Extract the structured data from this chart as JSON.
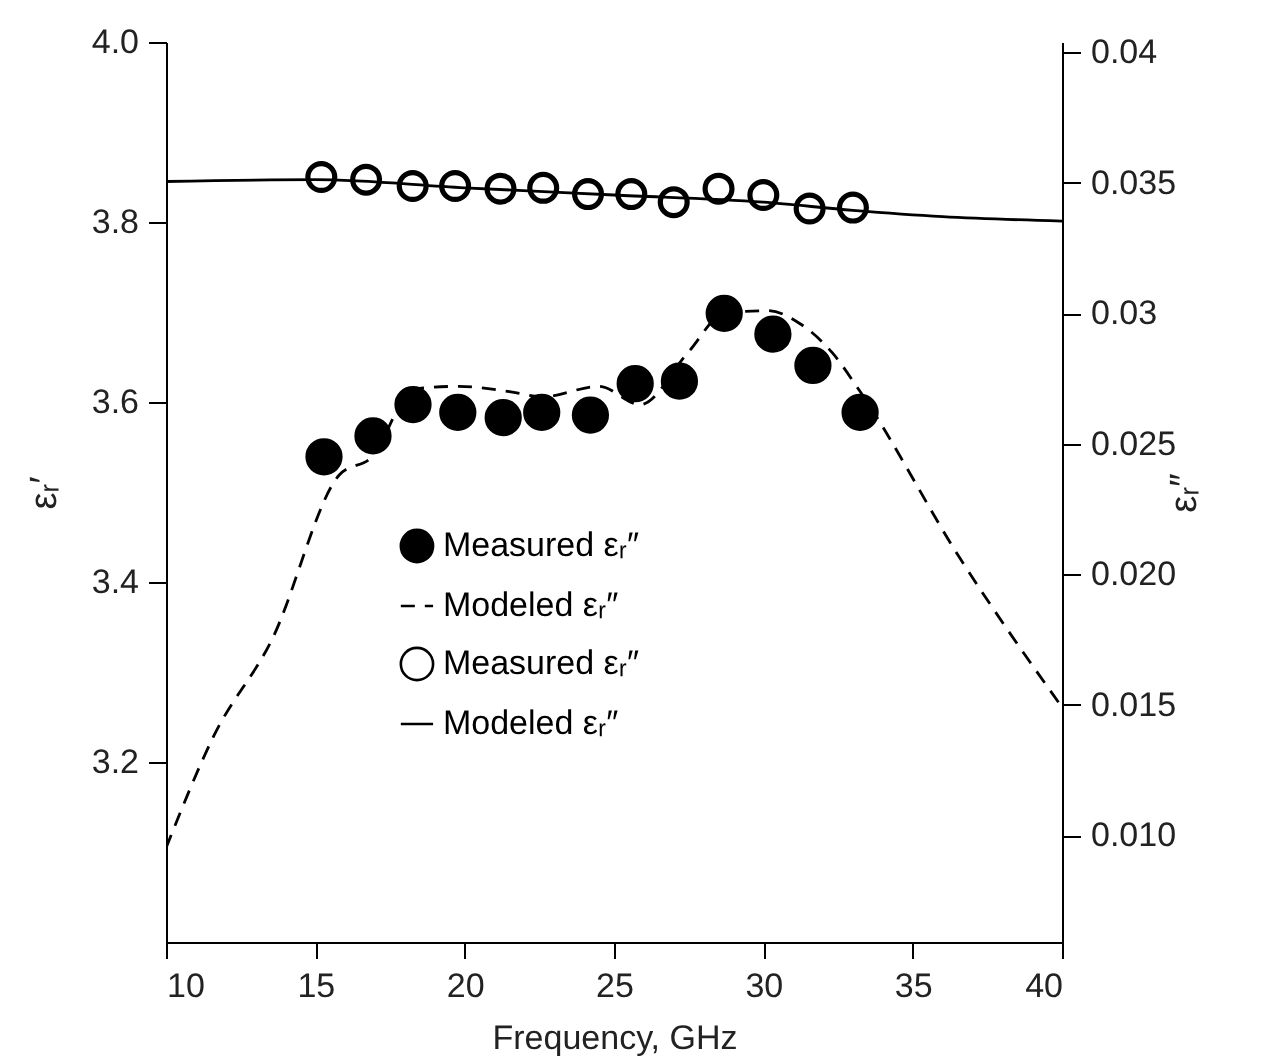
{
  "chart_data": {
    "type": "scatter",
    "xlabel": "Frequency, GHz",
    "ylabel": "εᵣ′",
    "y2label": "εᵣ″",
    "x": [
      15.29,
      16.93,
      18.27,
      19.77,
      21.29,
      22.58,
      24.21,
      25.71,
      27.19,
      28.69,
      30.32,
      31.66,
      33.24
    ],
    "series": [
      {
        "name": "Measured εᵣ″",
        "axis": "y2",
        "marker": "circle",
        "color": "#000000",
        "values": [
          0.0245,
          0.0253,
          0.0265,
          0.0262,
          0.026,
          0.0262,
          0.0261,
          0.0273,
          0.0274,
          0.03,
          0.0292,
          0.028,
          0.0262
        ]
      },
      {
        "name": "Modeled εᵣ″",
        "type": "line",
        "axis": "y2",
        "line_style": "dashed",
        "color": "#000000",
        "x": [
          10,
          11.6,
          13.55,
          15.8,
          16.9,
          18.3,
          19.8,
          21.5,
          22.6,
          24.5,
          25.87,
          27.48,
          28.69,
          30.16,
          31.23,
          32.3,
          33.24,
          36.59,
          40
        ],
        "values": [
          0.0095,
          0.0138,
          0.0175,
          0.0238,
          0.0245,
          0.0271,
          0.0272,
          0.027,
          0.0268,
          0.0272,
          0.0265,
          0.0285,
          0.03,
          0.0301,
          0.0296,
          0.0285,
          0.027,
          0.0206,
          0.0149
        ]
      },
      {
        "name": "Measured εᵣ″",
        "axis": "y",
        "marker": "circle",
        "color": "#000000",
        "x": [
          15.2,
          16.7,
          18.26,
          19.68,
          21.2,
          22.63,
          24.13,
          25.58,
          27.0,
          28.5,
          30.0,
          31.55,
          33.0
        ],
        "values": [
          3.85,
          3.847,
          3.84,
          3.84,
          3.837,
          3.838,
          3.831,
          3.831,
          3.822,
          3.837,
          3.83,
          3.815,
          3.816
        ]
      },
      {
        "name": "Modeled εᵣ″",
        "type": "line",
        "axis": "y",
        "line_style": "solid",
        "color": "#000000",
        "x": [
          10,
          15,
          20,
          25,
          30,
          33,
          36,
          40
        ],
        "values": [
          3.845,
          3.847,
          3.838,
          3.83,
          3.822,
          3.813,
          3.806,
          3.801
        ]
      }
    ],
    "xlim": [
      10,
      40
    ],
    "xticks": [
      10,
      15,
      20,
      25,
      30,
      35,
      40
    ],
    "ylim": [
      3.0,
      4.0
    ],
    "yticks": [
      3.2,
      3.4,
      3.6,
      3.8,
      {
        "value": 4.0,
        "label": "4.0"
      }
    ],
    "y2lim": [
      0.0059,
      0.0404
    ],
    "y2ticks": [
      {
        "value": 0.01,
        "label": "0.010"
      },
      0.015,
      {
        "value": 0.02,
        "label": "0.020"
      },
      0.025,
      0.03,
      0.035,
      0.04
    ],
    "legend": "center",
    "grid": false
  }
}
